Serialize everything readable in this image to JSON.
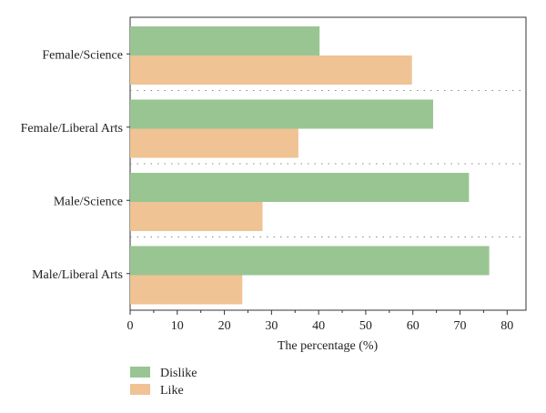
{
  "chart_data": {
    "type": "bar",
    "orientation": "horizontal",
    "title": "",
    "categories": [
      "Female/Science",
      "Female/Liberal Arts",
      "Male/Science",
      "Male/Liberal Arts"
    ],
    "series": [
      {
        "name": "Dislike",
        "values": [
          40.2,
          64.3,
          71.9,
          76.2
        ],
        "color": "#99c592"
      },
      {
        "name": "Like",
        "values": [
          59.8,
          35.7,
          28.1,
          23.8
        ],
        "color": "#efc393"
      }
    ],
    "xlabel": "The percentage (%)",
    "xlim": [
      0,
      84
    ],
    "xticks": [
      0,
      10,
      20,
      30,
      40,
      50,
      60,
      70,
      80
    ],
    "legend_position": "bottom-left",
    "separator_lines": "dotted"
  }
}
